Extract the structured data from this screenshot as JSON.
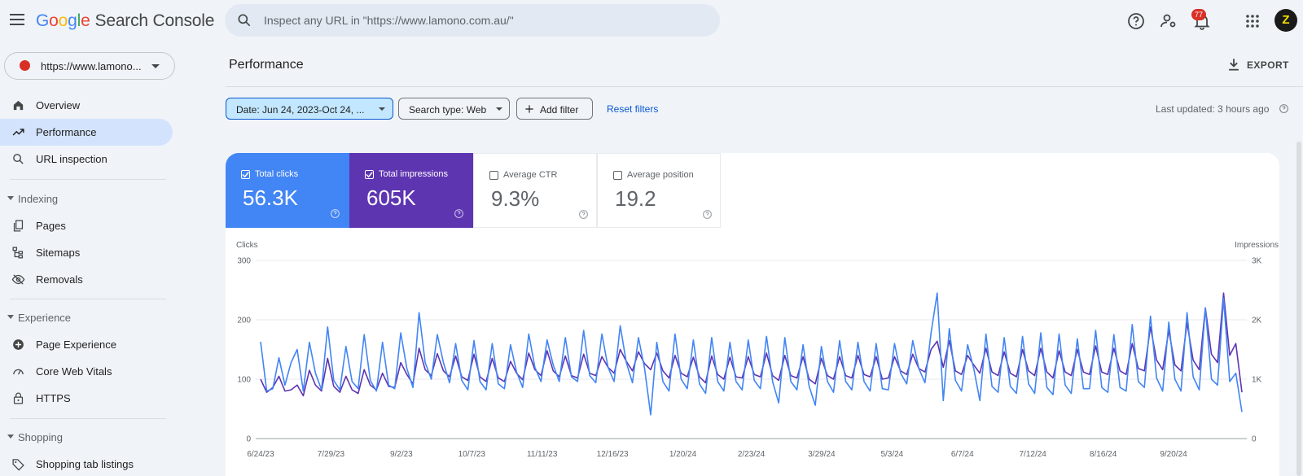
{
  "app": {
    "logo_letters": [
      "G",
      "o",
      "o",
      "g",
      "l",
      "e"
    ],
    "product": "Search Console",
    "search_placeholder": "Inspect any URL in \"https://www.lamono.com.au/\"",
    "notification_count": "77",
    "avatar_text": "Z"
  },
  "sidebar": {
    "property_label": "https://www.lamono...",
    "top_items": [
      {
        "label": "Overview",
        "icon": "home-icon"
      },
      {
        "label": "Performance",
        "icon": "trending-icon",
        "active": true
      },
      {
        "label": "URL inspection",
        "icon": "search-icon"
      }
    ],
    "sections": [
      {
        "label": "Indexing",
        "items": [
          {
            "label": "Pages",
            "icon": "pages-icon"
          },
          {
            "label": "Sitemaps",
            "icon": "sitemap-icon"
          },
          {
            "label": "Removals",
            "icon": "eye-off-icon"
          }
        ]
      },
      {
        "label": "Experience",
        "items": [
          {
            "label": "Page Experience",
            "icon": "plus-circle-icon"
          },
          {
            "label": "Core Web Vitals",
            "icon": "gauge-icon"
          },
          {
            "label": "HTTPS",
            "icon": "lock-icon"
          }
        ]
      },
      {
        "label": "Shopping",
        "items": [
          {
            "label": "Shopping tab listings",
            "icon": "tag-icon"
          }
        ]
      }
    ]
  },
  "main": {
    "title": "Performance",
    "export_label": "EXPORT",
    "filters": {
      "date": "Date: Jun 24, 2023-Oct 24, ...",
      "search_type": "Search type: Web",
      "add_filter": "Add filter",
      "reset": "Reset filters"
    },
    "last_updated": "Last updated: 3 hours ago",
    "metrics": [
      {
        "label": "Total clicks",
        "value": "56.3K",
        "checked": true
      },
      {
        "label": "Total impressions",
        "value": "605K",
        "checked": true
      },
      {
        "label": "Average CTR",
        "value": "9.3%",
        "checked": false
      },
      {
        "label": "Average position",
        "value": "19.2",
        "checked": false
      }
    ]
  },
  "colors": {
    "clicks": "#4285f4",
    "impressions": "#5e35b1",
    "accent": "#0b57d0"
  },
  "chart_data": {
    "type": "line",
    "xlabel": "",
    "ylabel": "Clicks",
    "y2label": "Impressions",
    "ylim": [
      0,
      300
    ],
    "y2lim": [
      0,
      3000
    ],
    "yticks": [
      "0",
      "100",
      "200",
      "300"
    ],
    "y2ticks": [
      "0",
      "1K",
      "2K",
      "3K"
    ],
    "x_ticks": [
      "6/24/23",
      "7/29/23",
      "9/2/23",
      "10/7/23",
      "11/11/23",
      "12/16/23",
      "1/20/24",
      "2/23/24",
      "3/29/24",
      "5/3/24",
      "6/7/24",
      "7/12/24",
      "8/16/24",
      "9/20/24"
    ],
    "x_start": "2023-06-24",
    "x_end": "2024-10-24",
    "grid": true,
    "series": [
      {
        "name": "Total clicks",
        "axis": "left",
        "values": [
          163,
          80,
          84,
          136,
          90,
          128,
          150,
          80,
          162,
          110,
          82,
          188,
          98,
          82,
          155,
          96,
          84,
          175,
          98,
          80,
          162,
          90,
          84,
          178,
          118,
          86,
          212,
          128,
          100,
          175,
          128,
          94,
          160,
          98,
          82,
          165,
          96,
          82,
          160,
          92,
          84,
          158,
          112,
          86,
          176,
          120,
          96,
          166,
          124,
          96,
          170,
          104,
          96,
          182,
          106,
          94,
          176,
          120,
          96,
          190,
          128,
          94,
          170,
          118,
          40,
          162,
          96,
          80,
          176,
          100,
          84,
          166,
          92,
          76,
          170,
          96,
          80,
          162,
          96,
          82,
          166,
          98,
          84,
          172,
          96,
          60,
          170,
          96,
          82,
          158,
          88,
          56,
          155,
          96,
          78,
          165,
          96,
          82,
          162,
          96,
          80,
          160,
          84,
          82,
          160,
          110,
          92,
          165,
          118,
          94,
          178,
          245,
          64,
          185,
          98,
          80,
          158,
          118,
          64,
          176,
          88,
          78,
          170,
          88,
          76,
          172,
          92,
          76,
          178,
          86,
          74,
          176,
          90,
          76,
          168,
          84,
          84,
          182,
          86,
          78,
          175,
          86,
          80,
          192,
          96,
          86,
          206,
          102,
          80,
          196,
          100,
          80,
          212,
          104,
          82,
          220,
          100,
          90,
          236,
          96,
          110,
          45
        ],
        "dates_sampled": "approx. every 3 days"
      },
      {
        "name": "Total impressions",
        "axis": "right",
        "values": [
          1000,
          780,
          860,
          1050,
          800,
          820,
          900,
          720,
          1150,
          900,
          800,
          1350,
          880,
          780,
          1050,
          820,
          760,
          1160,
          900,
          820,
          1100,
          880,
          860,
          1280,
          1080,
          920,
          1520,
          1160,
          1060,
          1430,
          1140,
          1040,
          1390,
          1040,
          980,
          1420,
          1040,
          960,
          1350,
          1020,
          960,
          1300,
          1100,
          990,
          1440,
          1160,
          1060,
          1480,
          1140,
          1040,
          1390,
          1060,
          1020,
          1420,
          1100,
          1060,
          1380,
          1200,
          1100,
          1500,
          1300,
          1140,
          1460,
          1260,
          1160,
          1440,
          1140,
          1020,
          1400,
          1100,
          1040,
          1370,
          1040,
          940,
          1390,
          1080,
          1000,
          1370,
          1040,
          1020,
          1380,
          1080,
          1040,
          1440,
          1060,
          980,
          1400,
          1060,
          1020,
          1380,
          1000,
          920,
          1350,
          1060,
          1000,
          1380,
          1060,
          1020,
          1400,
          1080,
          1040,
          1380,
          1000,
          1020,
          1380,
          1140,
          1080,
          1420,
          1180,
          1120,
          1500,
          1640,
          1200,
          1650,
          1140,
          1080,
          1400,
          1240,
          1100,
          1520,
          1120,
          1060,
          1460,
          1100,
          1040,
          1500,
          1140,
          1060,
          1520,
          1120,
          1020,
          1480,
          1120,
          1060,
          1500,
          1120,
          1080,
          1560,
          1120,
          1080,
          1520,
          1140,
          1080,
          1600,
          1180,
          1140,
          1880,
          1320,
          1160,
          1820,
          1240,
          1140,
          1950,
          1320,
          1160,
          2200,
          1420,
          1280,
          2450,
          1400,
          1600,
          780
        ]
      }
    ]
  }
}
